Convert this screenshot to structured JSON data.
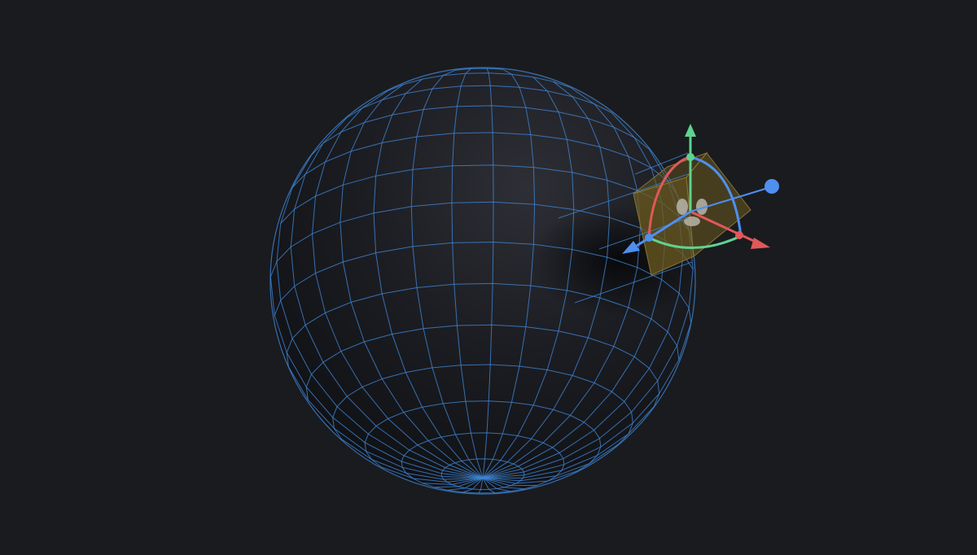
{
  "scene": {
    "background": "#1a1b1f",
    "sphere": {
      "shape": "uv-sphere",
      "wireframe_color": "#3f86d6",
      "body_color": "#1c1d22",
      "meridians": 32,
      "parallels": 16
    },
    "selected_object": {
      "shape": "box",
      "face_color": "#6b5a1f",
      "icon": "light-bulb-icon"
    },
    "gizmo": {
      "mode": "rotate-translate",
      "axes": [
        {
          "name": "x-axis",
          "color": "#e0585a"
        },
        {
          "name": "y-axis",
          "color": "#5fd38f"
        },
        {
          "name": "z-axis",
          "color": "#4f8ff0"
        }
      ]
    }
  }
}
